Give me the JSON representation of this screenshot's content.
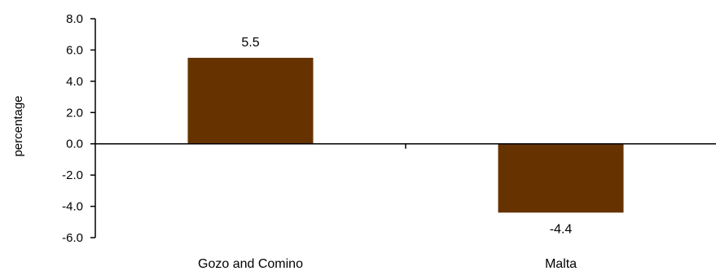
{
  "chart_data": {
    "type": "bar",
    "categories": [
      "Gozo and Comino",
      "Malta"
    ],
    "values": [
      5.5,
      -4.4
    ],
    "data_labels": [
      "5.5",
      "-4.4"
    ],
    "ylabel": "percentage",
    "ylim": [
      -6.0,
      8.0
    ],
    "ytick_step": 2.0,
    "ytick_labels": [
      "8.0",
      "6.0",
      "4.0",
      "2.0",
      "0.0",
      "-2.0",
      "-4.0",
      "-6.0"
    ],
    "grid": false,
    "legend": "none",
    "bar_color": "#663300"
  }
}
